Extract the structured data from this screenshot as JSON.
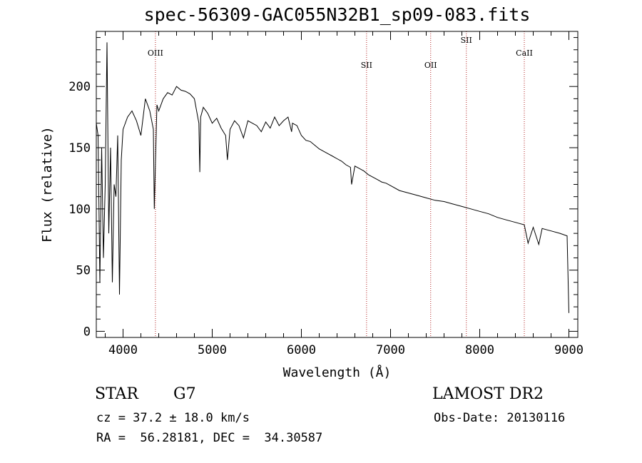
{
  "chart_data": {
    "type": "line",
    "title": "spec-56309-GAC055N32B1_sp09-083.fits",
    "xlabel": "Wavelength (Å)",
    "ylabel": "Flux (relative)",
    "xlim": [
      3700,
      9100
    ],
    "ylim": [
      -5,
      245
    ],
    "xticks": [
      4000,
      5000,
      6000,
      7000,
      8000,
      9000
    ],
    "yticks": [
      0,
      50,
      100,
      150,
      200
    ],
    "lines": [
      {
        "name": "OIII",
        "wavelength": 4363,
        "label_level": "high"
      },
      {
        "name": "SII",
        "wavelength": 6731,
        "label_level": "mid"
      },
      {
        "name": "OII",
        "wavelength": 7450,
        "label_level": "mid"
      },
      {
        "name": "SII",
        "wavelength": 7850,
        "label_level": "top"
      },
      {
        "name": "CaII",
        "wavelength": 8500,
        "label_level": "high"
      }
    ],
    "series": [
      {
        "name": "flux",
        "x": [
          3700,
          3720,
          3740,
          3760,
          3780,
          3800,
          3820,
          3840,
          3860,
          3880,
          3900,
          3920,
          3940,
          3960,
          3980,
          4000,
          4050,
          4100,
          4150,
          4200,
          4250,
          4300,
          4340,
          4350,
          4380,
          4400,
          4450,
          4500,
          4550,
          4600,
          4650,
          4700,
          4750,
          4800,
          4850,
          4861,
          4870,
          4900,
          4950,
          5000,
          5050,
          5100,
          5150,
          5170,
          5200,
          5250,
          5300,
          5350,
          5400,
          5450,
          5500,
          5550,
          5600,
          5650,
          5700,
          5750,
          5800,
          5850,
          5890,
          5900,
          5950,
          6000,
          6050,
          6100,
          6150,
          6200,
          6250,
          6300,
          6350,
          6400,
          6450,
          6500,
          6550,
          6563,
          6600,
          6650,
          6700,
          6750,
          6800,
          6850,
          6900,
          6950,
          7000,
          7100,
          7200,
          7300,
          7400,
          7500,
          7600,
          7700,
          7800,
          7900,
          8000,
          8100,
          8200,
          8300,
          8400,
          8500,
          8542,
          8600,
          8662,
          8700,
          8800,
          8900,
          8980,
          9000
        ],
        "values": [
          170,
          160,
          40,
          150,
          60,
          120,
          236,
          80,
          150,
          40,
          120,
          110,
          160,
          30,
          140,
          165,
          175,
          180,
          172,
          160,
          190,
          180,
          165,
          100,
          185,
          180,
          190,
          195,
          193,
          200,
          197,
          196,
          194,
          190,
          170,
          130,
          175,
          183,
          178,
          170,
          174,
          166,
          160,
          140,
          165,
          172,
          168,
          158,
          172,
          170,
          168,
          163,
          171,
          166,
          175,
          168,
          172,
          175,
          163,
          170,
          168,
          160,
          156,
          155,
          152,
          149,
          147,
          145,
          143,
          141,
          139,
          136,
          134,
          120,
          135,
          133,
          131,
          128,
          126,
          124,
          122,
          121,
          119,
          115,
          113,
          111,
          109,
          107,
          106,
          104,
          102,
          100,
          98,
          96,
          93,
          91,
          89,
          87,
          72,
          85,
          71,
          84,
          82,
          80,
          78,
          15
        ]
      }
    ]
  },
  "footer": {
    "object_class": "STAR",
    "subclass": "G7",
    "redshift": "cz = 37.2 ± 18.0 km/s",
    "coords": "RA =  56.28181, DEC =  34.30587",
    "survey": "LAMOST DR2",
    "obs_date": "Obs-Date: 20130116"
  }
}
